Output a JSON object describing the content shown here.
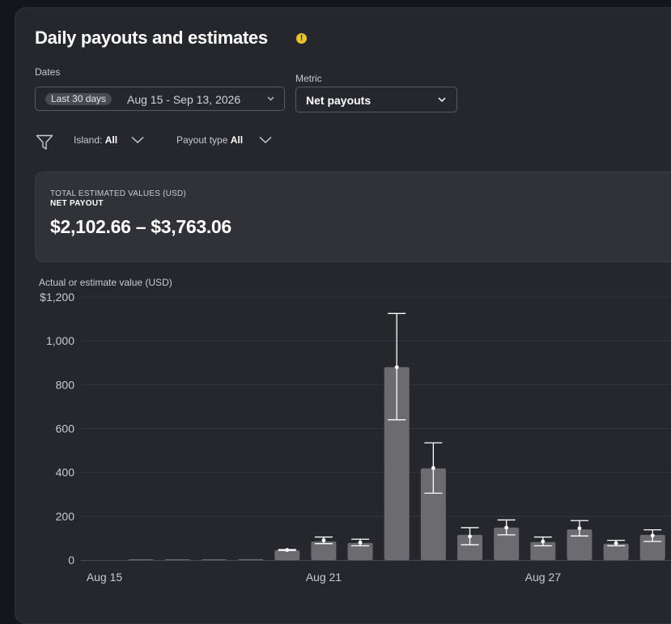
{
  "header": {
    "title": "Daily payouts and estimates",
    "info_glyph": "!"
  },
  "dates": {
    "label": "Dates",
    "preset": "Last 30 days",
    "range": "Aug 15 - Sep 13, 2026"
  },
  "metric": {
    "label": "Metric",
    "value": "Net payouts"
  },
  "filters": {
    "island_label": "Island:",
    "island_value": "All",
    "payout_type_label": "Payout type",
    "payout_type_value": "All"
  },
  "summary": {
    "line1": "TOTAL ESTIMATED VALUES (USD)",
    "line2": "NET PAYOUT",
    "value": "$2,102.66 – $3,763.06"
  },
  "chart_data": {
    "type": "bar",
    "ylabel": "Actual or estimate value (USD)",
    "ylim": [
      0,
      1200
    ],
    "yticks": [
      {
        "value": 1200,
        "label": "$1,200"
      },
      {
        "value": 1000,
        "label": "1,000"
      },
      {
        "value": 800,
        "label": "800"
      },
      {
        "value": 600,
        "label": "600"
      },
      {
        "value": 400,
        "label": "400"
      },
      {
        "value": 200,
        "label": "200"
      },
      {
        "value": 0,
        "label": "0"
      }
    ],
    "xticks": [
      {
        "index": 0,
        "label": "Aug 15"
      },
      {
        "index": 6,
        "label": "Aug 21"
      },
      {
        "index": 12,
        "label": "Aug 27"
      }
    ],
    "grid": true,
    "days": [
      {
        "date": "Aug 15",
        "value": 0
      },
      {
        "date": "Aug 16",
        "value": 3
      },
      {
        "date": "Aug 17",
        "value": 2
      },
      {
        "date": "Aug 18",
        "value": 1
      },
      {
        "date": "Aug 19",
        "value": 4
      },
      {
        "date": "Aug 20",
        "value": 45,
        "estimate": 46,
        "low": 44,
        "high": 48
      },
      {
        "date": "Aug 21",
        "value": 85,
        "estimate": 90,
        "low": 75,
        "high": 105
      },
      {
        "date": "Aug 22",
        "value": 78,
        "estimate": 80,
        "low": 65,
        "high": 95
      },
      {
        "date": "Aug 23",
        "value": 880,
        "estimate": 880,
        "low": 640,
        "high": 1125
      },
      {
        "date": "Aug 24",
        "value": 418,
        "estimate": 420,
        "low": 305,
        "high": 535
      },
      {
        "date": "Aug 25",
        "value": 115,
        "estimate": 108,
        "low": 70,
        "high": 148
      },
      {
        "date": "Aug 26",
        "value": 148,
        "estimate": 148,
        "low": 115,
        "high": 183
      },
      {
        "date": "Aug 27",
        "value": 82,
        "estimate": 85,
        "low": 65,
        "high": 105
      },
      {
        "date": "Aug 28",
        "value": 140,
        "estimate": 145,
        "low": 110,
        "high": 180
      },
      {
        "date": "Aug 29",
        "value": 75,
        "estimate": 77,
        "low": 65,
        "high": 90
      },
      {
        "date": "Aug 30",
        "value": 115,
        "estimate": 112,
        "low": 85,
        "high": 138
      }
    ],
    "colors": {
      "bar": "#6b6b70",
      "error_bar": "#ffffff",
      "grid": "#34353b",
      "axis": "#4a4b51"
    }
  }
}
